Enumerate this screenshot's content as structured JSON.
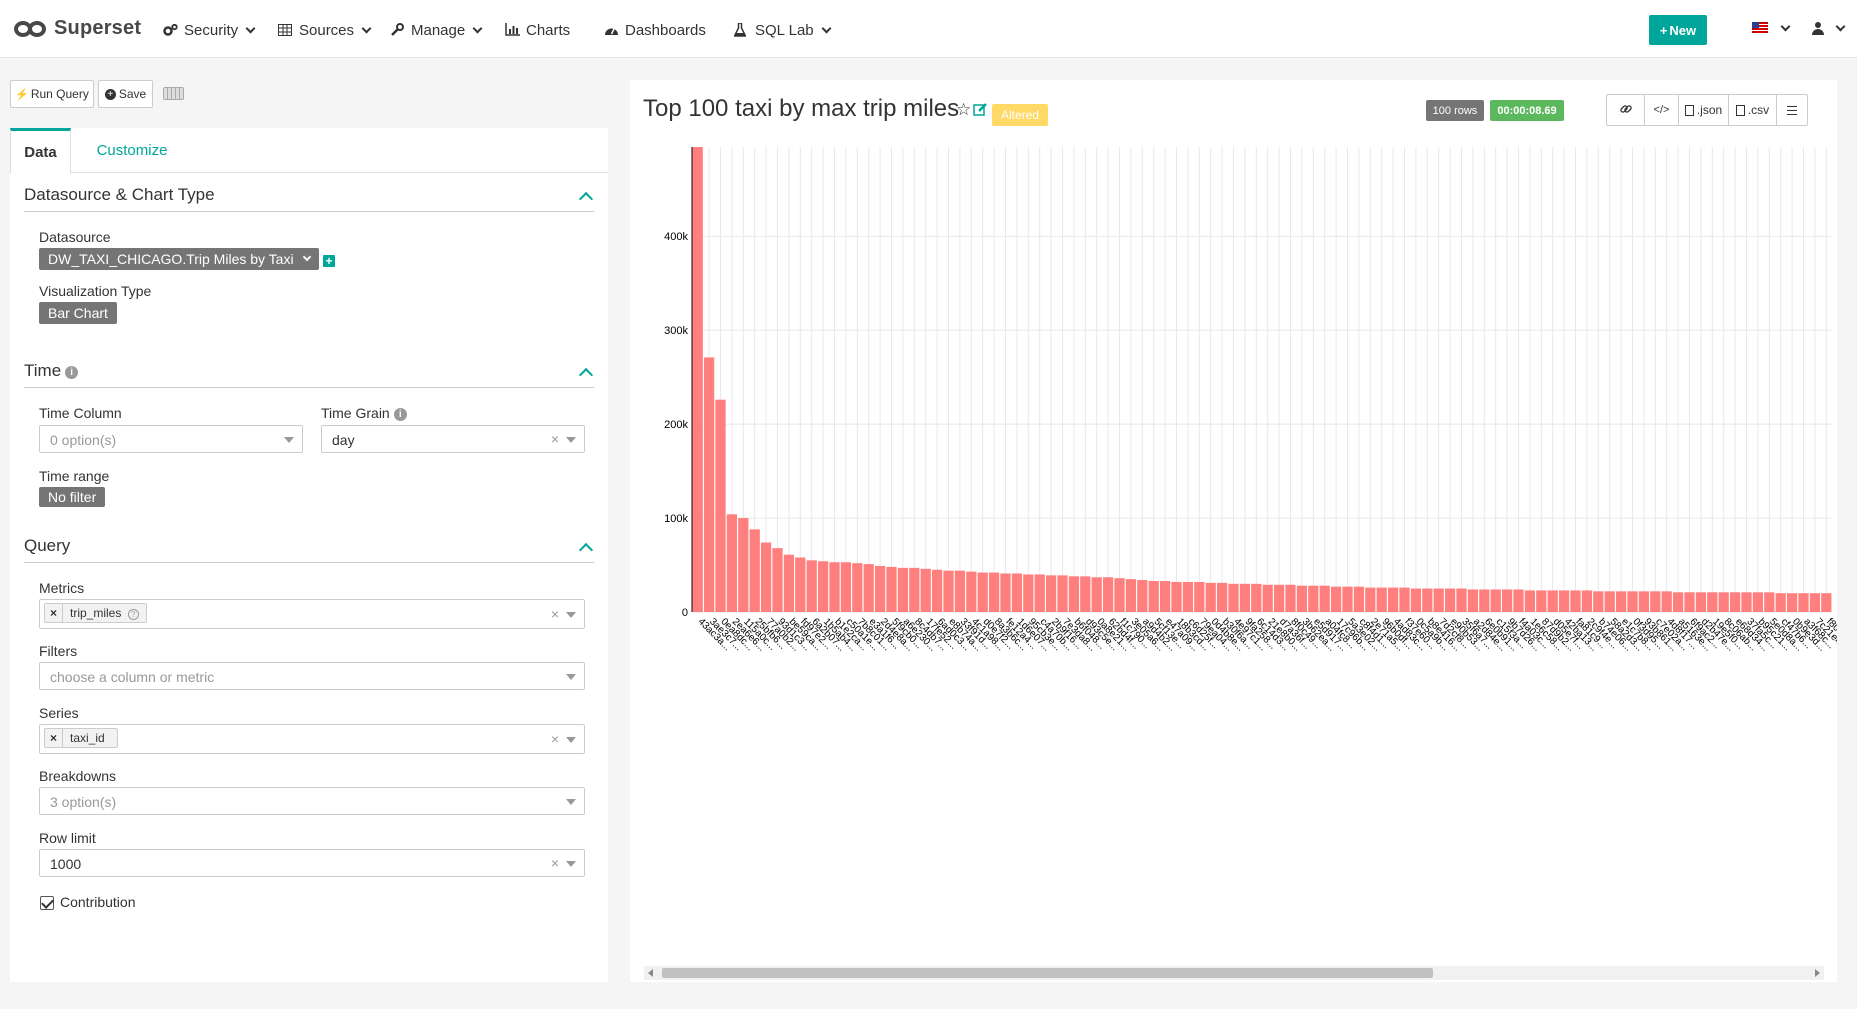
{
  "navbar": {
    "brand": "Superset",
    "items": [
      {
        "label": "Security",
        "dropdown": true
      },
      {
        "label": "Sources",
        "dropdown": true
      },
      {
        "label": "Manage",
        "dropdown": true
      },
      {
        "label": "Charts",
        "dropdown": false
      },
      {
        "label": "Dashboards",
        "dropdown": false
      },
      {
        "label": "SQL Lab",
        "dropdown": true
      }
    ],
    "new_button": "New",
    "accent": "#00a699"
  },
  "toolbar": {
    "run_query": "Run Query",
    "save": "Save"
  },
  "tabs": [
    "Data",
    "Customize"
  ],
  "sections": {
    "datasource_chart": {
      "title": "Datasource & Chart Type",
      "datasource_label": "Datasource",
      "datasource_value": "DW_TAXI_CHICAGO.Trip Miles by Taxi",
      "viz_label": "Visualization Type",
      "viz_value": "Bar Chart"
    },
    "time": {
      "title": "Time",
      "column_label": "Time Column",
      "column_placeholder": "0 option(s)",
      "grain_label": "Time Grain",
      "grain_value": "day",
      "range_label": "Time range",
      "range_value": "No filter"
    },
    "query": {
      "title": "Query",
      "metrics_label": "Metrics",
      "metrics_chip": "trip_miles",
      "filters_label": "Filters",
      "filters_placeholder": "choose a column or metric",
      "series_label": "Series",
      "series_chip": "taxi_id",
      "breakdowns_label": "Breakdowns",
      "breakdowns_placeholder": "3 option(s)",
      "row_limit_label": "Row limit",
      "row_limit_value": "1000",
      "contribution_label": "Contribution",
      "contribution_checked": true
    }
  },
  "chart_panel": {
    "title": "Top 100 taxi by max trip miles",
    "altered": "Altered",
    "rows_badge": "100 rows",
    "time_badge": "00:00:08.69",
    "json_btn": ".json",
    "csv_btn": ".csv"
  },
  "chart_data": {
    "type": "bar",
    "title": "",
    "xlabel": "",
    "ylabel": "",
    "ylim": [
      0,
      495000
    ],
    "yticks": [
      "0",
      "100k",
      "200k",
      "300k",
      "400k"
    ],
    "grid": true,
    "color": "#ff7f7f",
    "categories": [
      "43ac3a...",
      "3ae3c7...",
      "0ea8dc...",
      "2ea6e6...",
      "115a0c...",
      "25bfb6...",
      "77a0b2...",
      "93d1c3...",
      "be59ca...",
      "fd97e2...",
      "6a2b07...",
      "1b5ab4...",
      "b1e2ca...",
      "c50a1e...",
      "7b8c01...",
      "e3a1f6...",
      "2d4e8a...",
      "5f9cb0...",
      "a6e230...",
      "8c4db7...",
      "17fe52...",
      "6ad0c3...",
      "e8b74a...",
      "33f91d...",
      "4c1a98...",
      "d0e7f2...",
      "8a3b6c...",
      "fe12a4...",
      "1d6e07...",
      "95cb3e...",
      "c4a70b...",
      "2b9f16...",
      "7e3da8...",
      "b6f048...",
      "d93c5e...",
      "0a8e21...",
      "62bd4f...",
      "f1c790...",
      "3e05a6...",
      "a9d4b2...",
      "5cf13e...",
      "e47a09...",
      "18b3cd...",
      "c6d25f...",
      "79ea04...",
      "0d4b8e...",
      "b30f6a...",
      "4e97c1...",
      "9fa258...",
      "6c14d3...",
      "21e8b0...",
      "d7a36f...",
      "8f0c49...",
      "3b62ea...",
      "e5d917...",
      "a04fc8...",
      "17c96b...",
      "5a3e02...",
      "c8f4d1...",
      "2e71a5...",
      "96b0df...",
      "4ad83c...",
      "f37e60...",
      "0c5a9b...",
      "b8e416...",
      "7d2cf8...",
      "e90b53...",
      "35f6a7...",
      "a2d84e...",
      "6e0b91...",
      "c15f3a...",
      "9b7d26...",
      "f4a03c...",
      "1e6c58...",
      "87d9b2...",
      "d05e7f...",
      "42ba13...",
      "fa81c9...",
      "2c9f4e...",
      "b74e06...",
      "58a2d3...",
      "e1c7b8...",
      "0f3d95...",
      "93b861...",
      "c7e02a...",
      "4d8f17...",
      "a5163e...",
      "6f9ac2...",
      "d2b47e...",
      "19e5f0...",
      "8c06ab...",
      "e68d34...",
      "37fa5c...",
      "b95c21...",
      "5e0d8a...",
      "cf47b6...",
      "0b9e3d...",
      "a3f68c...",
      "7c21e4...",
      "f80a55..."
    ],
    "values": [
      495000,
      271000,
      226000,
      104000,
      100000,
      88000,
      74000,
      68000,
      61000,
      58000,
      55000,
      54000,
      53000,
      53000,
      52000,
      51000,
      49000,
      48000,
      47000,
      47000,
      46000,
      45000,
      44000,
      44000,
      43000,
      42000,
      42000,
      41000,
      41000,
      40000,
      40000,
      39000,
      39000,
      38000,
      38000,
      37000,
      37000,
      36000,
      35000,
      34000,
      33000,
      33000,
      32000,
      32000,
      32000,
      31000,
      31000,
      30000,
      30000,
      30000,
      29000,
      29000,
      29000,
      28000,
      28000,
      28000,
      27000,
      27000,
      27000,
      26000,
      26000,
      26000,
      26000,
      25000,
      25000,
      25000,
      25000,
      25000,
      24000,
      24000,
      24000,
      24000,
      24000,
      23000,
      23000,
      23000,
      23000,
      23000,
      23000,
      22000,
      22000,
      22000,
      22000,
      22000,
      22000,
      22000,
      21000,
      21000,
      21000,
      21000,
      21000,
      21000,
      21000,
      21000,
      21000,
      20000,
      20000,
      20000,
      20000,
      20000
    ]
  }
}
